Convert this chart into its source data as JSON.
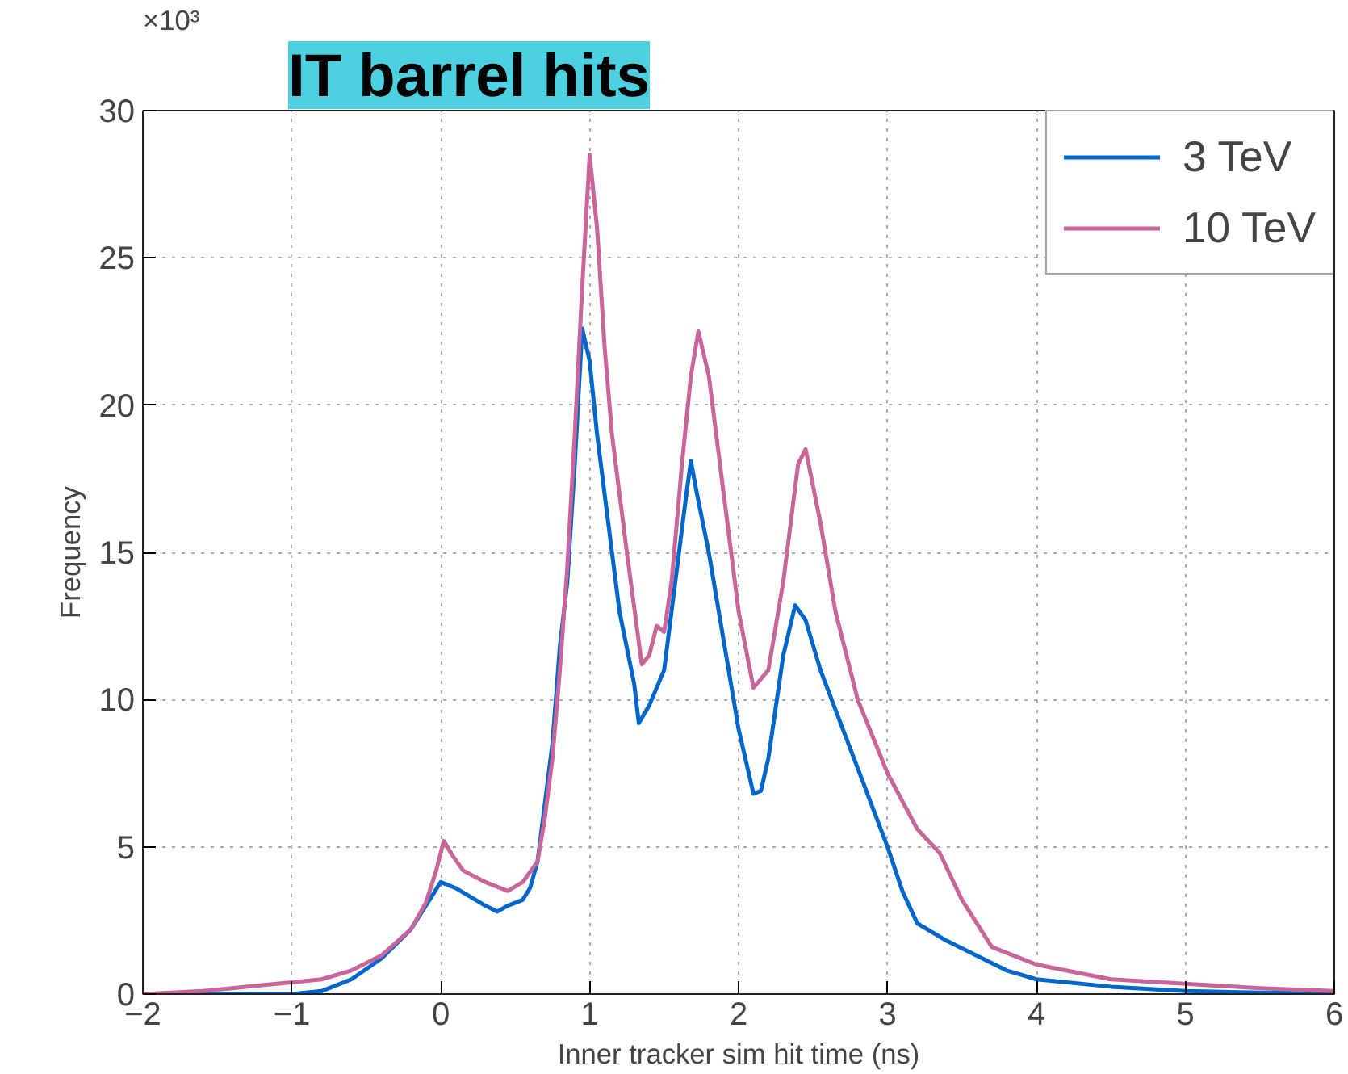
{
  "chart_data": {
    "type": "line",
    "title": "IT barrel hits",
    "xlabel": "Inner tracker sim hit time (ns)",
    "ylabel": "Frequency",
    "annotations": [
      "×10³"
    ],
    "xlim": [
      -2,
      6
    ],
    "xticks": [
      {
        "value": -2,
        "label": "−2"
      },
      {
        "value": -1,
        "label": "−1"
      },
      0,
      1,
      2,
      3,
      4,
      5,
      6
    ],
    "ylim": [
      0,
      30
    ],
    "yticks": [
      0,
      5,
      10,
      15,
      20,
      25,
      30
    ],
    "grid": true,
    "legend": "top right",
    "line_style": "solid",
    "marker": "none",
    "series": [
      {
        "name": "3 TeV",
        "color": "#0066cc",
        "x": [
          -2,
          -1.5,
          -1,
          -0.8,
          -0.6,
          -0.4,
          -0.2,
          -0.1,
          0,
          0.1,
          0.2,
          0.3,
          0.38,
          0.45,
          0.55,
          0.6,
          0.65,
          0.7,
          0.75,
          0.8,
          0.85,
          0.9,
          0.95,
          1.0,
          1.05,
          1.1,
          1.15,
          1.2,
          1.3,
          1.33,
          1.4,
          1.5,
          1.55,
          1.6,
          1.65,
          1.68,
          1.72,
          1.8,
          1.9,
          2.0,
          2.1,
          2.15,
          2.2,
          2.3,
          2.38,
          2.45,
          2.55,
          2.7,
          2.85,
          3.0,
          3.1,
          3.2,
          3.4,
          3.6,
          3.8,
          4.0,
          4.5,
          5,
          5.5,
          6
        ],
        "values": [
          0,
          0,
          0,
          0.1,
          0.5,
          1.2,
          2.2,
          3.0,
          3.8,
          3.6,
          3.3,
          3.0,
          2.8,
          3.0,
          3.2,
          3.6,
          4.5,
          6.5,
          8.5,
          11.8,
          14,
          18,
          22.6,
          21.5,
          19,
          17,
          15,
          13,
          10.5,
          9.2,
          9.8,
          11,
          13,
          15,
          17,
          18.1,
          17,
          15,
          12,
          9,
          6.8,
          6.9,
          8,
          11.5,
          13.2,
          12.7,
          11,
          9,
          7,
          5,
          3.5,
          2.4,
          1.8,
          1.3,
          0.8,
          0.5,
          0.25,
          0.1,
          0.05,
          0.05
        ]
      },
      {
        "name": "10 TeV",
        "color": "#c8659a",
        "x": [
          -2,
          -1.6,
          -1.4,
          -1.2,
          -1,
          -0.8,
          -0.6,
          -0.4,
          -0.2,
          -0.1,
          -0.03,
          0.02,
          0.08,
          0.15,
          0.3,
          0.45,
          0.55,
          0.65,
          0.7,
          0.75,
          0.8,
          0.85,
          0.9,
          0.95,
          1.0,
          1.05,
          1.1,
          1.15,
          1.25,
          1.35,
          1.4,
          1.45,
          1.5,
          1.55,
          1.62,
          1.68,
          1.73,
          1.8,
          1.9,
          2.0,
          2.1,
          2.2,
          2.3,
          2.4,
          2.45,
          2.55,
          2.65,
          2.8,
          3.0,
          3.2,
          3.35,
          3.5,
          3.7,
          4.0,
          4.5,
          5,
          5.5,
          6
        ],
        "values": [
          0,
          0.1,
          0.2,
          0.3,
          0.4,
          0.5,
          0.8,
          1.3,
          2.2,
          3.1,
          4.2,
          5.2,
          4.7,
          4.2,
          3.8,
          3.5,
          3.8,
          4.5,
          6,
          8,
          11,
          14.5,
          19,
          24,
          28.5,
          26,
          22,
          19,
          15,
          11.2,
          11.5,
          12.5,
          12.3,
          14,
          18,
          21,
          22.5,
          21,
          17,
          13,
          10.4,
          11,
          14,
          18,
          18.5,
          16,
          13,
          10,
          7.5,
          5.6,
          4.8,
          3.2,
          1.6,
          1.0,
          0.5,
          0.35,
          0.2,
          0.1
        ]
      }
    ]
  }
}
